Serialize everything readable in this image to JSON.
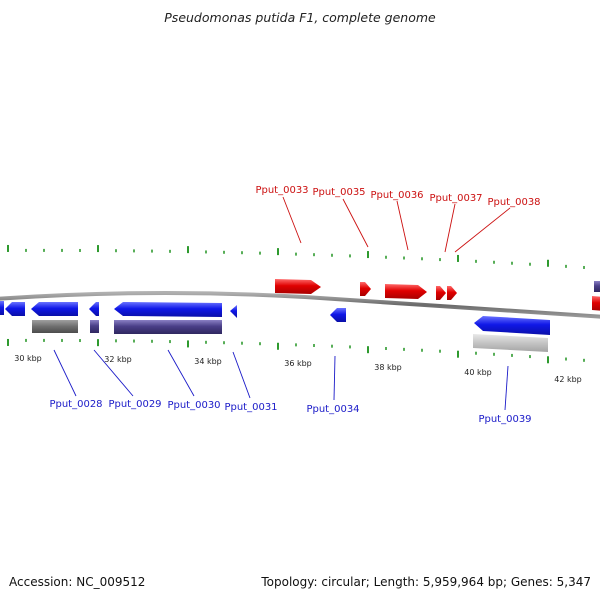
{
  "title": "Pseudomonas putida F1, complete genome",
  "footer": {
    "accession": "Accession: NC_009512",
    "summary": "Topology: circular; Length: 5,959,964 bp; Genes: 5,347"
  },
  "colors": {
    "forward_gene": "#e00000",
    "reverse_gene": "#0a10e0",
    "reverse_label": "#1a1ac8",
    "forward_label": "#cc1111",
    "cds_block": "#4a3f88",
    "pseudo_block": "#6e6e6e",
    "light_block": "#c4c4c4",
    "backbone": "#777777",
    "ticks": "#2e9a2e"
  },
  "scale_labels": [
    "30 kbp",
    "32 kbp",
    "34 kbp",
    "36 kbp",
    "38 kbp",
    "40 kbp",
    "42 kbp"
  ],
  "genes_forward": [
    "Pput_0033",
    "Pput_0035",
    "Pput_0036",
    "Pput_0037",
    "Pput_0038"
  ],
  "genes_reverse": [
    "Pput_0028",
    "Pput_0029",
    "Pput_0030",
    "Pput_0031",
    "Pput_0034",
    "Pput_0039"
  ]
}
